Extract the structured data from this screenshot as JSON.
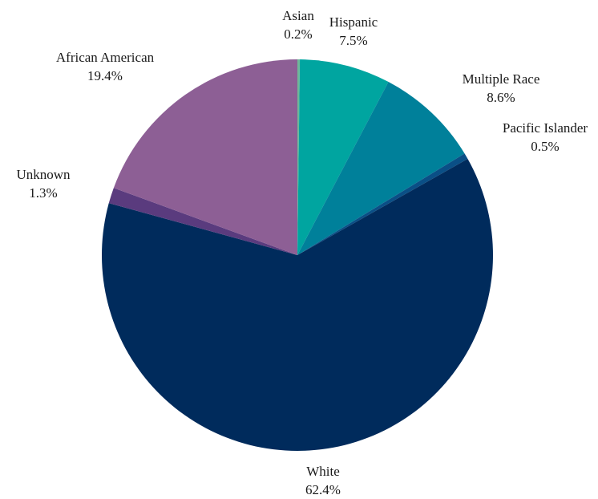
{
  "chart_data": {
    "type": "pie",
    "start": "top",
    "direction": "clockwise",
    "slices": [
      {
        "label": "Asian",
        "value": 0.2,
        "display": "0.2%",
        "color": "#6fb79a"
      },
      {
        "label": "Hispanic",
        "value": 7.5,
        "display": "7.5%",
        "color": "#00a5a0"
      },
      {
        "label": "Multiple Race",
        "value": 8.6,
        "display": "8.6%",
        "color": "#00809a"
      },
      {
        "label": "Pacific Islander",
        "value": 0.5,
        "display": "0.5%",
        "color": "#0a4f86"
      },
      {
        "label": "White",
        "value": 62.4,
        "display": "62.4%",
        "color": "#002b5c"
      },
      {
        "label": "Unknown",
        "value": 1.3,
        "display": "1.3%",
        "color": "#5a3b7e"
      },
      {
        "label": "African American",
        "value": 19.4,
        "display": "19.4%",
        "color": "#8d5f95"
      }
    ]
  }
}
